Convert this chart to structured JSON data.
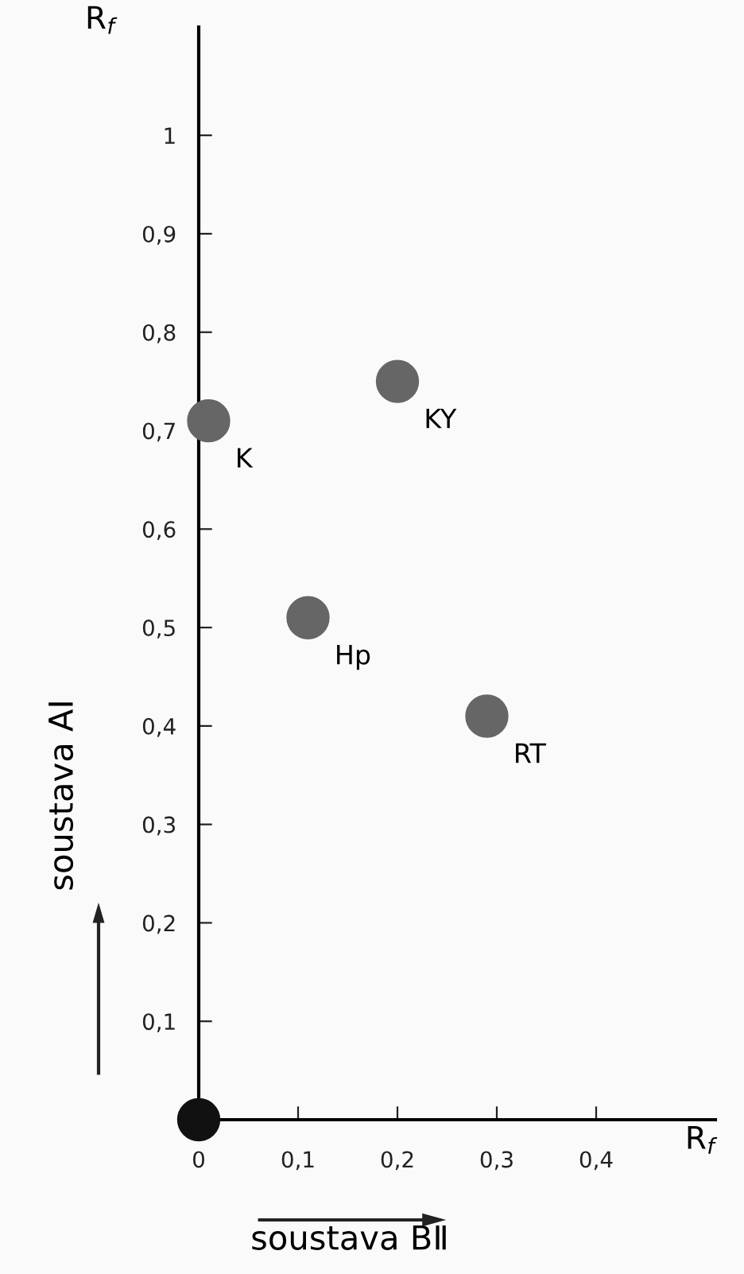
{
  "chart_data": {
    "type": "scatter",
    "xlabel": "R$_{f}$",
    "ylabel": "R$_{f}$",
    "x": [
      0,
      0.01,
      0.2,
      0.11,
      0.29
    ],
    "values": [
      0,
      0.71,
      0.75,
      0.51,
      0.41
    ],
    "colors": [
      "#111111",
      "#666666",
      "#666666",
      "#666666",
      "#666666"
    ],
    "marker": "circle",
    "annotations": [
      {
        "text": "K",
        "x": 0.01,
        "y": 0.71
      },
      {
        "text": "KY",
        "x": 0.2,
        "y": 0.75
      },
      {
        "text": "Hp",
        "x": 0.11,
        "y": 0.51
      },
      {
        "text": "RT",
        "x": 0.29,
        "y": 0.41
      },
      "soustava AⅠ",
      "soustava BⅡ"
    ],
    "xlim": [
      0,
      0.52
    ],
    "ylim": [
      0,
      1.11
    ],
    "xticks": [
      0,
      {
        "value": 0.1,
        "label": "0,1"
      },
      {
        "value": 0.2,
        "label": "0,2"
      },
      {
        "value": 0.3,
        "label": "0,3"
      },
      {
        "value": 0.4,
        "label": "0,4"
      }
    ],
    "yticks": [
      {
        "value": 0.1,
        "label": "0,1"
      },
      {
        "value": 0.2,
        "label": "0,2"
      },
      {
        "value": 0.3,
        "label": "0,3"
      },
      {
        "value": 0.4,
        "label": "0,4"
      },
      {
        "value": 0.5,
        "label": "0,5"
      },
      {
        "value": 0.6,
        "label": "0,6"
      },
      {
        "value": 0.7,
        "label": "0,7"
      },
      {
        "value": 0.8,
        "label": "0,8"
      },
      {
        "value": 0.9,
        "label": "0,9"
      },
      1
    ],
    "grid": false,
    "legend": false
  }
}
